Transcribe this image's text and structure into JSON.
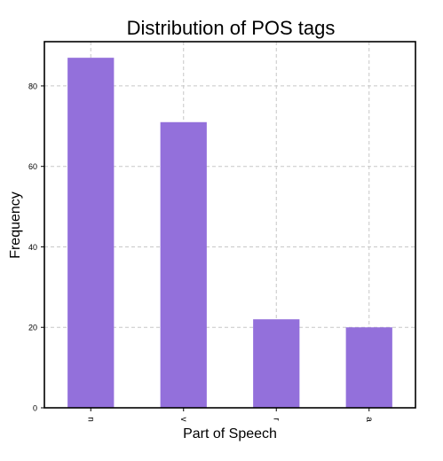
{
  "chart_data": {
    "type": "bar",
    "title": "Distribution of POS tags",
    "xlabel": "Part of Speech",
    "ylabel": "Frequency",
    "categories": [
      "n",
      "v",
      "r",
      "a"
    ],
    "values": [
      87,
      71,
      22,
      20
    ],
    "ylim": [
      0,
      91
    ],
    "yticks": [
      0,
      20,
      40,
      60,
      80
    ],
    "grid": true,
    "bar_color": "#9370db",
    "grid_color": "#c7c7c7",
    "axis_color": "#000000"
  }
}
